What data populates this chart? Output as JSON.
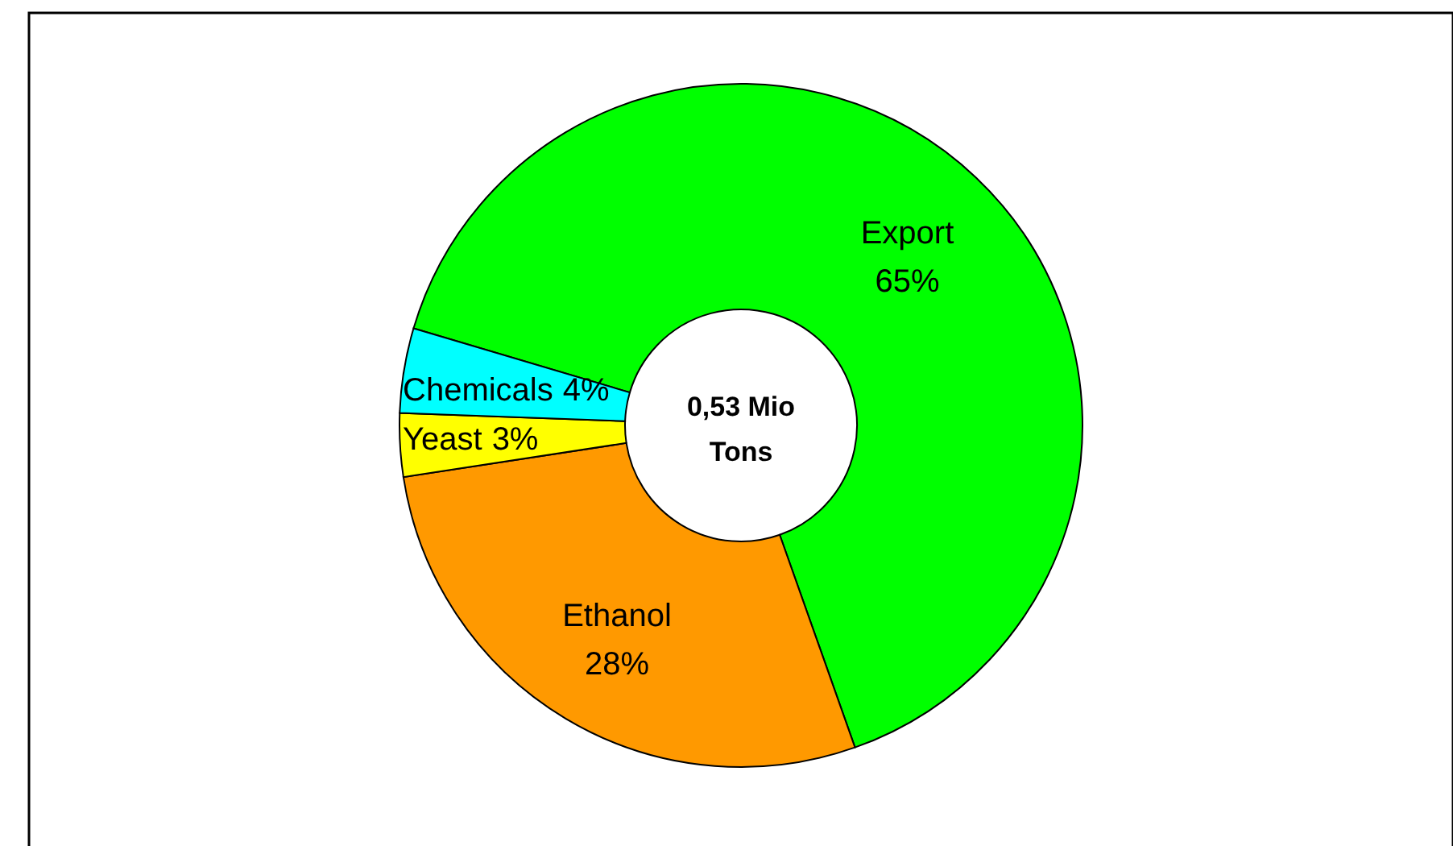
{
  "chart_data": {
    "type": "donut",
    "categories": [
      "Export",
      "Ethanol",
      "Yeast",
      "Chemicals"
    ],
    "values": [
      65,
      28,
      3,
      4
    ],
    "colors": [
      "#00ff00",
      "#ff9900",
      "#ffff00",
      "#00ffff"
    ],
    "value_labels": [
      "65%",
      "28%",
      "3%",
      "4%"
    ],
    "annotations": [
      "0,53 Mio Tons"
    ]
  }
}
